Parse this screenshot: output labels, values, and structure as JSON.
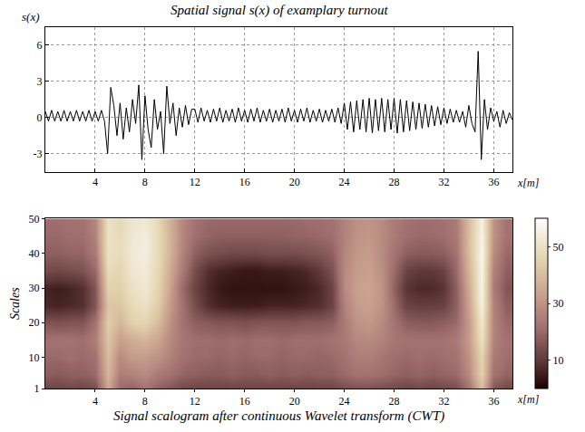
{
  "chart_data": [
    {
      "type": "line",
      "title": "Spatial signal s(x) of examplary turnout",
      "ylabel": "s(x)",
      "xlabel": "x[m]",
      "color": "#000000",
      "grid": true,
      "xlim": [
        0,
        37.5
      ],
      "xticks": [
        4,
        8,
        12,
        16,
        20,
        24,
        28,
        32,
        36
      ],
      "ylim": [
        -4.5,
        7.5
      ],
      "yticks": [
        -3,
        0,
        3,
        6
      ],
      "x": [
        0,
        0.25,
        0.5,
        0.75,
        1,
        1.25,
        1.5,
        1.75,
        2,
        2.25,
        2.5,
        2.75,
        3,
        3.25,
        3.5,
        3.75,
        4,
        4.25,
        4.5,
        4.75,
        5,
        5.25,
        5.5,
        5.75,
        6,
        6.25,
        6.5,
        6.75,
        7,
        7.25,
        7.5,
        7.75,
        8,
        8.25,
        8.5,
        8.75,
        9,
        9.25,
        9.5,
        9.75,
        10,
        10.25,
        10.5,
        10.75,
        11,
        11.25,
        11.5,
        11.75,
        12,
        12.25,
        12.5,
        12.75,
        13,
        13.25,
        13.5,
        13.75,
        14,
        14.25,
        14.5,
        14.75,
        15,
        15.25,
        15.5,
        15.75,
        16,
        16.25,
        16.5,
        16.75,
        17,
        17.25,
        17.5,
        17.75,
        18,
        18.25,
        18.5,
        18.75,
        19,
        19.25,
        19.5,
        19.75,
        20,
        20.25,
        20.5,
        20.75,
        21,
        21.25,
        21.5,
        21.75,
        22,
        22.25,
        22.5,
        22.75,
        23,
        23.25,
        23.5,
        23.75,
        24,
        24.25,
        24.5,
        24.75,
        25,
        25.25,
        25.5,
        25.75,
        26,
        26.25,
        26.5,
        26.75,
        27,
        27.25,
        27.5,
        27.75,
        28,
        28.25,
        28.5,
        28.75,
        29,
        29.25,
        29.5,
        29.75,
        30,
        30.25,
        30.5,
        30.75,
        31,
        31.25,
        31.5,
        31.75,
        32,
        32.25,
        32.5,
        32.75,
        33,
        33.25,
        33.5,
        33.75,
        34,
        34.25,
        34.5,
        34.75,
        35,
        35.25,
        35.5,
        35.75,
        36,
        36.25,
        36.5,
        36.75,
        37,
        37.25,
        37.5
      ],
      "values": [
        0.5,
        -0.3,
        0.6,
        -0.3,
        0.5,
        -0.3,
        0.6,
        -0.3,
        0.5,
        -0.3,
        0.6,
        -0.3,
        0.5,
        -0.3,
        0.6,
        -0.3,
        0.5,
        -0.3,
        0.6,
        -0.3,
        -3.0,
        2.5,
        1.0,
        -1.5,
        1.2,
        -1.8,
        0.8,
        -1.2,
        1.5,
        -0.5,
        2.7,
        -3.5,
        1.8,
        -1.0,
        -2.5,
        1.5,
        -1.0,
        0.5,
        -3.0,
        2.6,
        -0.5,
        1.2,
        -1.5,
        0.8,
        -0.8,
        1.0,
        -0.6,
        0.7,
        0.7,
        -0.4,
        0.8,
        -0.3,
        0.6,
        -0.4,
        0.7,
        -0.3,
        0.8,
        -0.4,
        0.6,
        -0.3,
        0.7,
        -0.4,
        0.8,
        -0.3,
        0.6,
        -0.4,
        0.7,
        -0.3,
        0.8,
        -0.4,
        0.6,
        -0.3,
        0.7,
        -0.4,
        0.6,
        -0.3,
        0.7,
        -0.4,
        0.8,
        -0.3,
        0.6,
        -0.4,
        0.7,
        -0.3,
        0.8,
        -0.4,
        0.6,
        -0.3,
        0.7,
        -0.4,
        0.6,
        -0.3,
        0.7,
        -0.4,
        0.8,
        -0.5,
        1.2,
        -1.0,
        1.3,
        -1.2,
        1.4,
        -1.0,
        1.5,
        -1.2,
        1.6,
        -1.3,
        1.5,
        -1.1,
        1.6,
        -1.2,
        1.5,
        -1.0,
        1.6,
        -1.3,
        1.5,
        -1.2,
        1.4,
        -1.1,
        1.3,
        -1.0,
        1.2,
        -0.9,
        1.1,
        -0.8,
        1.0,
        -0.7,
        0.9,
        -0.6,
        0.8,
        -0.5,
        0.7,
        -0.4,
        0.6,
        -0.4,
        0.5,
        -0.8,
        1.0,
        -0.5,
        -1.2,
        5.5,
        -3.5,
        1.5,
        -1.0,
        0.8,
        -0.3,
        0.5,
        -0.8,
        0.6,
        -0.5,
        0.4,
        -0.2
      ]
    },
    {
      "type": "heatmap",
      "title": "Signal scalogram after continuous Wavelet transform (CWT)",
      "ylabel": "Scales",
      "xlabel": "x[m]",
      "xlim": [
        0,
        37.5
      ],
      "xticks": [
        4,
        8,
        12,
        16,
        20,
        24,
        28,
        32,
        36
      ],
      "ylim": [
        1,
        50
      ],
      "yticks": [
        1,
        10,
        20,
        30,
        40,
        50
      ],
      "zlim": [
        0,
        60
      ],
      "zticks": [
        10,
        30,
        50
      ],
      "x": [
        0,
        1,
        2,
        3,
        4,
        5,
        6,
        7,
        8,
        9,
        10,
        11,
        12,
        13,
        14,
        15,
        16,
        17,
        18,
        19,
        20,
        21,
        22,
        23,
        24,
        25,
        26,
        27,
        28,
        29,
        30,
        31,
        32,
        33,
        34,
        35,
        36,
        37
      ],
      "y": [
        1,
        5,
        10,
        15,
        20,
        25,
        30,
        35,
        40,
        45,
        50
      ],
      "z": [
        [
          12,
          12,
          13,
          12,
          14,
          35,
          20,
          18,
          22,
          18,
          16,
          13,
          12,
          12,
          12,
          12,
          12,
          12,
          12,
          12,
          12,
          12,
          12,
          12,
          14,
          15,
          15,
          14,
          13,
          12,
          13,
          12,
          13,
          14,
          22,
          40,
          16,
          13
        ],
        [
          18,
          17,
          18,
          18,
          20,
          38,
          25,
          26,
          28,
          24,
          22,
          19,
          18,
          17,
          17,
          18,
          17,
          17,
          18,
          17,
          18,
          17,
          18,
          18,
          20,
          22,
          22,
          21,
          19,
          18,
          19,
          18,
          19,
          20,
          28,
          45,
          22,
          19
        ],
        [
          20,
          20,
          21,
          20,
          22,
          40,
          28,
          32,
          32,
          30,
          26,
          22,
          20,
          20,
          19,
          20,
          19,
          20,
          20,
          19,
          20,
          20,
          19,
          20,
          22,
          25,
          25,
          23,
          21,
          20,
          21,
          20,
          21,
          22,
          30,
          46,
          24,
          21
        ],
        [
          22,
          22,
          22,
          21,
          25,
          42,
          33,
          36,
          38,
          34,
          28,
          23,
          21,
          21,
          20,
          21,
          20,
          21,
          21,
          20,
          21,
          21,
          21,
          22,
          24,
          27,
          28,
          26,
          23,
          22,
          22,
          22,
          22,
          24,
          32,
          50,
          26,
          22
        ],
        [
          16,
          15,
          16,
          16,
          22,
          44,
          38,
          45,
          46,
          40,
          30,
          22,
          18,
          17,
          16,
          16,
          15,
          16,
          16,
          16,
          16,
          17,
          17,
          18,
          24,
          30,
          31,
          28,
          22,
          18,
          17,
          17,
          18,
          20,
          32,
          52,
          26,
          20
        ],
        [
          7,
          6,
          7,
          8,
          16,
          42,
          42,
          48,
          50,
          44,
          32,
          22,
          14,
          8,
          6,
          5,
          5,
          5,
          6,
          6,
          6,
          7,
          8,
          12,
          26,
          32,
          33,
          30,
          20,
          12,
          11,
          11,
          12,
          18,
          34,
          55,
          26,
          18
        ],
        [
          6,
          5,
          6,
          8,
          16,
          45,
          45,
          50,
          52,
          46,
          34,
          20,
          12,
          7,
          4,
          3,
          3,
          3,
          3,
          3,
          4,
          5,
          7,
          12,
          28,
          33,
          34,
          30,
          18,
          9,
          7,
          7,
          9,
          18,
          36,
          56,
          24,
          16
        ],
        [
          14,
          13,
          14,
          15,
          20,
          48,
          46,
          52,
          53,
          47,
          36,
          24,
          14,
          8,
          6,
          5,
          4,
          4,
          5,
          5,
          6,
          7,
          10,
          15,
          28,
          32,
          33,
          29,
          20,
          12,
          10,
          10,
          12,
          20,
          38,
          56,
          26,
          18
        ],
        [
          18,
          18,
          19,
          19,
          24,
          50,
          48,
          53,
          54,
          48,
          38,
          26,
          18,
          15,
          14,
          13,
          13,
          13,
          14,
          14,
          14,
          15,
          16,
          18,
          27,
          31,
          32,
          28,
          22,
          18,
          17,
          17,
          18,
          22,
          40,
          57,
          28,
          20
        ],
        [
          20,
          20,
          21,
          21,
          26,
          50,
          48,
          52,
          54,
          48,
          38,
          27,
          21,
          19,
          18,
          18,
          18,
          18,
          18,
          18,
          19,
          19,
          20,
          21,
          26,
          30,
          31,
          28,
          24,
          21,
          20,
          20,
          21,
          24,
          40,
          56,
          30,
          22
        ],
        [
          21,
          21,
          22,
          22,
          27,
          50,
          47,
          51,
          52,
          47,
          37,
          27,
          22,
          20,
          20,
          20,
          20,
          20,
          20,
          20,
          20,
          21,
          21,
          22,
          26,
          29,
          30,
          28,
          24,
          22,
          21,
          21,
          22,
          24,
          40,
          55,
          30,
          22
        ]
      ]
    }
  ]
}
